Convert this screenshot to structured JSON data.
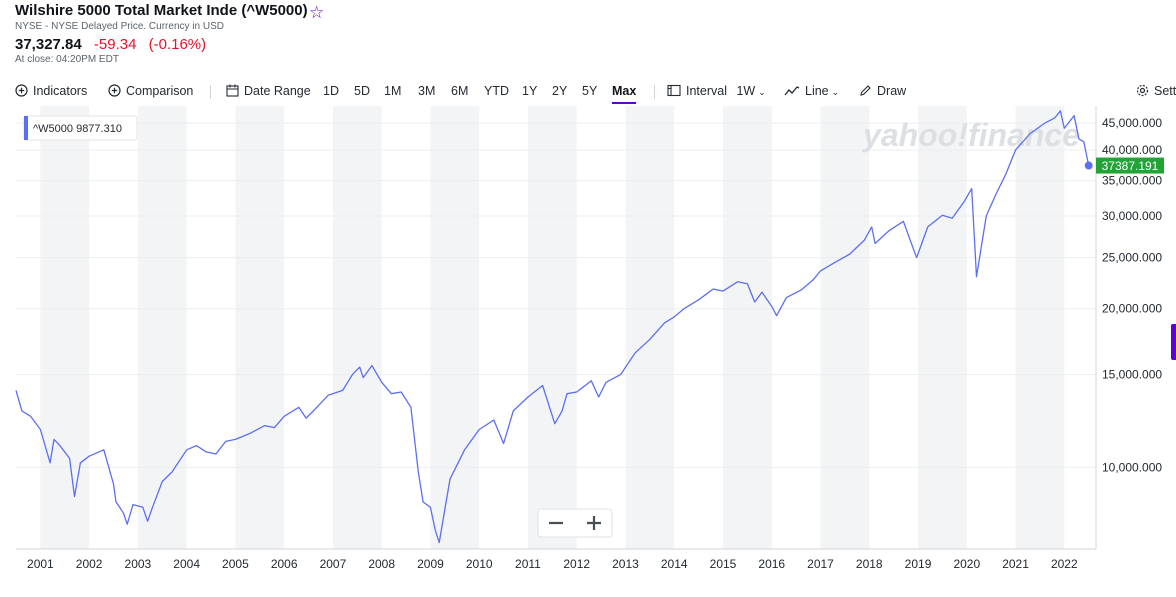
{
  "header": {
    "title": "Wilshire 5000 Total Market Inde (^W5000)",
    "subtitle": "NYSE - NYSE Delayed Price. Currency in USD",
    "price": "37,327.84",
    "change": "-59.34",
    "change_pct": "(-0.16%)",
    "close_time": "At close: 04:20PM EDT",
    "accent_color": "#6001d2",
    "down_color": "#eb0f29"
  },
  "toolbar": {
    "indicators": "Indicators",
    "comparison": "Comparison",
    "date_range": "Date Range",
    "ranges": [
      "1D",
      "5D",
      "1M",
      "3M",
      "6M",
      "YTD",
      "1Y",
      "2Y",
      "5Y",
      "Max"
    ],
    "active_range": "Max",
    "interval_label": "Interval",
    "interval_value": "1W",
    "chart_type": "Line",
    "draw": "Draw",
    "settings": "Settings"
  },
  "chart_data": {
    "type": "line",
    "yscale": "log",
    "ylim": [
      7000,
      48500
    ],
    "xlim": [
      2000.5,
      2022.65
    ],
    "y_ticks": [
      10000,
      15000,
      20000,
      25000,
      30000,
      35000,
      40000,
      45000
    ],
    "y_tick_labels": [
      "10,000.000",
      "15,000.000",
      "20,000.000",
      "25,000.000",
      "30,000.000",
      "35,000.000",
      "40,000.000",
      "45,000.000"
    ],
    "x_tick_labels": [
      "2001",
      "2002",
      "2003",
      "2004",
      "2005",
      "2006",
      "2007",
      "2008",
      "2009",
      "2010",
      "2011",
      "2012",
      "2013",
      "2014",
      "2015",
      "2016",
      "2017",
      "2018",
      "2019",
      "2020",
      "2021",
      "2022"
    ],
    "legend": {
      "symbol": "^W5000",
      "value": "9877.310"
    },
    "last_value_label": "37387.191",
    "line_color": "#5b6ff0",
    "last_label_color": "#21a336",
    "watermark": "yahoo!finance",
    "series": [
      {
        "x": [
          2000.5,
          2000.62,
          2000.8,
          2001.0,
          2001.2,
          2001.28,
          2001.4,
          2001.6,
          2001.7,
          2001.82,
          2002.0,
          2002.3,
          2002.5,
          2002.55,
          2002.7,
          2002.78,
          2002.9,
          2003.1,
          2003.2,
          2003.3,
          2003.5,
          2003.7,
          2004.0,
          2004.2,
          2004.4,
          2004.6,
          2004.8,
          2005.0,
          2005.3,
          2005.6,
          2005.8,
          2006.0,
          2006.3,
          2006.45,
          2006.6,
          2006.9,
          2007.2,
          2007.4,
          2007.55,
          2007.62,
          2007.8,
          2008.0,
          2008.2,
          2008.4,
          2008.6,
          2008.75,
          2008.85,
          2009.0,
          2009.1,
          2009.18,
          2009.4,
          2009.7,
          2010.0,
          2010.3,
          2010.5,
          2010.7,
          2011.0,
          2011.3,
          2011.55,
          2011.7,
          2011.8,
          2012.0,
          2012.3,
          2012.45,
          2012.6,
          2012.9,
          2013.2,
          2013.5,
          2013.8,
          2014.0,
          2014.2,
          2014.5,
          2014.8,
          2015.0,
          2015.3,
          2015.5,
          2015.65,
          2015.8,
          2016.0,
          2016.1,
          2016.3,
          2016.6,
          2016.85,
          2017.0,
          2017.3,
          2017.6,
          2017.9,
          2018.05,
          2018.12,
          2018.4,
          2018.7,
          2018.97,
          2019.2,
          2019.5,
          2019.7,
          2019.95,
          2020.1,
          2020.2,
          2020.4,
          2020.6,
          2020.8,
          2021.0,
          2021.3,
          2021.6,
          2021.8,
          2021.92,
          2022.0,
          2022.2,
          2022.3,
          2022.4,
          2022.46,
          2022.5
        ],
        "y": [
          14000,
          12800,
          12500,
          11800,
          10200,
          11300,
          11000,
          10400,
          8800,
          10200,
          10500,
          10800,
          9300,
          8600,
          8200,
          7800,
          8500,
          8400,
          7900,
          8400,
          9400,
          9800,
          10800,
          11000,
          10700,
          10600,
          11200,
          11300,
          11600,
          12000,
          11900,
          12500,
          13000,
          12400,
          12800,
          13700,
          14000,
          15000,
          15500,
          14800,
          15600,
          14500,
          13800,
          13900,
          13000,
          9800,
          8600,
          8400,
          7600,
          7200,
          9500,
          10800,
          11800,
          12300,
          11100,
          12800,
          13600,
          14300,
          12100,
          12800,
          13800,
          13900,
          14600,
          13600,
          14500,
          15000,
          16500,
          17500,
          18800,
          19300,
          20000,
          20800,
          21800,
          21600,
          22500,
          22300,
          20600,
          21500,
          20200,
          19400,
          21000,
          21700,
          22700,
          23600,
          24500,
          25400,
          27000,
          28600,
          26600,
          28100,
          29300,
          25000,
          28600,
          30100,
          29700,
          32000,
          33800,
          23000,
          30000,
          33000,
          36000,
          40000,
          43000,
          45000,
          46000,
          47500,
          44000,
          46500,
          42000,
          41500,
          39000,
          37387
        ]
      }
    ]
  }
}
